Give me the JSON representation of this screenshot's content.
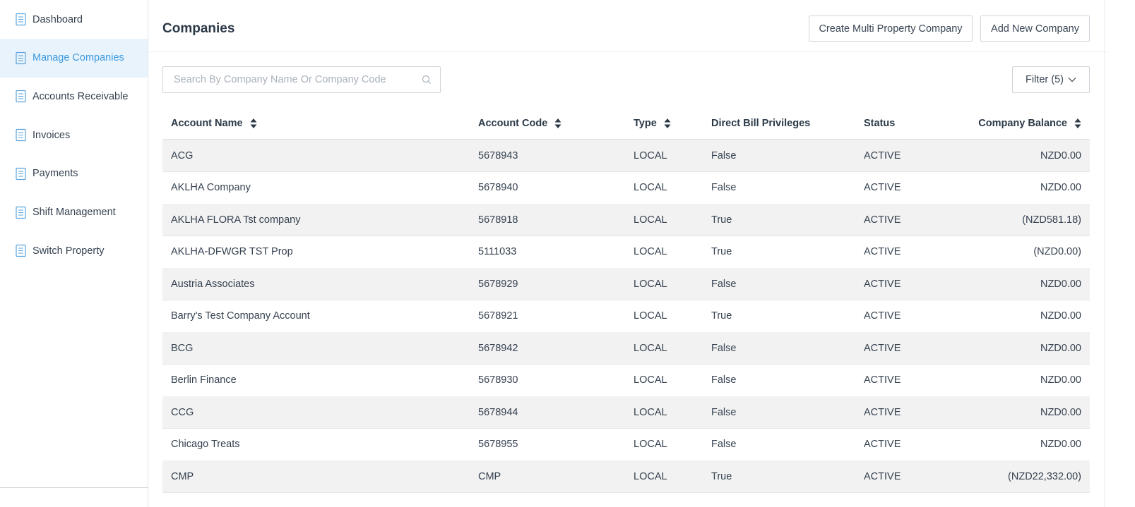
{
  "sidebar": {
    "items": [
      "Dashboard",
      "Manage Companies",
      "Accounts Receivable",
      "Invoices",
      "Payments",
      "Shift Management",
      "Switch Property"
    ],
    "active": 1
  },
  "header": {
    "title": "Companies",
    "buttons": [
      "Create Multi Property Company",
      "Add New Company"
    ]
  },
  "search": {
    "placeholder": "Search By Company Name Or Company Code"
  },
  "filter": {
    "label": "Filter (5)"
  },
  "table": {
    "columns": [
      {
        "label": "Account Name",
        "sortable": true
      },
      {
        "label": "Account Code",
        "sortable": true
      },
      {
        "label": "Type",
        "sortable": true
      },
      {
        "label": "Direct Bill Privileges",
        "sortable": false
      },
      {
        "label": "Status",
        "sortable": false
      },
      {
        "label": "Company Balance",
        "sortable": true
      }
    ],
    "rows": [
      [
        "ACG",
        "5678943",
        "LOCAL",
        "False",
        "ACTIVE",
        "NZD0.00"
      ],
      [
        "AKLHA Company",
        "5678940",
        "LOCAL",
        "False",
        "ACTIVE",
        "NZD0.00"
      ],
      [
        "AKLHA FLORA Tst company",
        "5678918",
        "LOCAL",
        "True",
        "ACTIVE",
        "(NZD581.18)"
      ],
      [
        "AKLHA-DFWGR TST Prop",
        "5111033",
        "LOCAL",
        "True",
        "ACTIVE",
        "(NZD0.00)"
      ],
      [
        "Austria Associates",
        "5678929",
        "LOCAL",
        "False",
        "ACTIVE",
        "NZD0.00"
      ],
      [
        "Barry's Test Company Account",
        "5678921",
        "LOCAL",
        "True",
        "ACTIVE",
        "NZD0.00"
      ],
      [
        "BCG",
        "5678942",
        "LOCAL",
        "False",
        "ACTIVE",
        "NZD0.00"
      ],
      [
        "Berlin Finance",
        "5678930",
        "LOCAL",
        "False",
        "ACTIVE",
        "NZD0.00"
      ],
      [
        "CCG",
        "5678944",
        "LOCAL",
        "False",
        "ACTIVE",
        "NZD0.00"
      ],
      [
        "Chicago Treats",
        "5678955",
        "LOCAL",
        "False",
        "ACTIVE",
        "NZD0.00"
      ],
      [
        "CMP",
        "CMP",
        "LOCAL",
        "True",
        "ACTIVE",
        "(NZD22,332.00)"
      ]
    ]
  }
}
